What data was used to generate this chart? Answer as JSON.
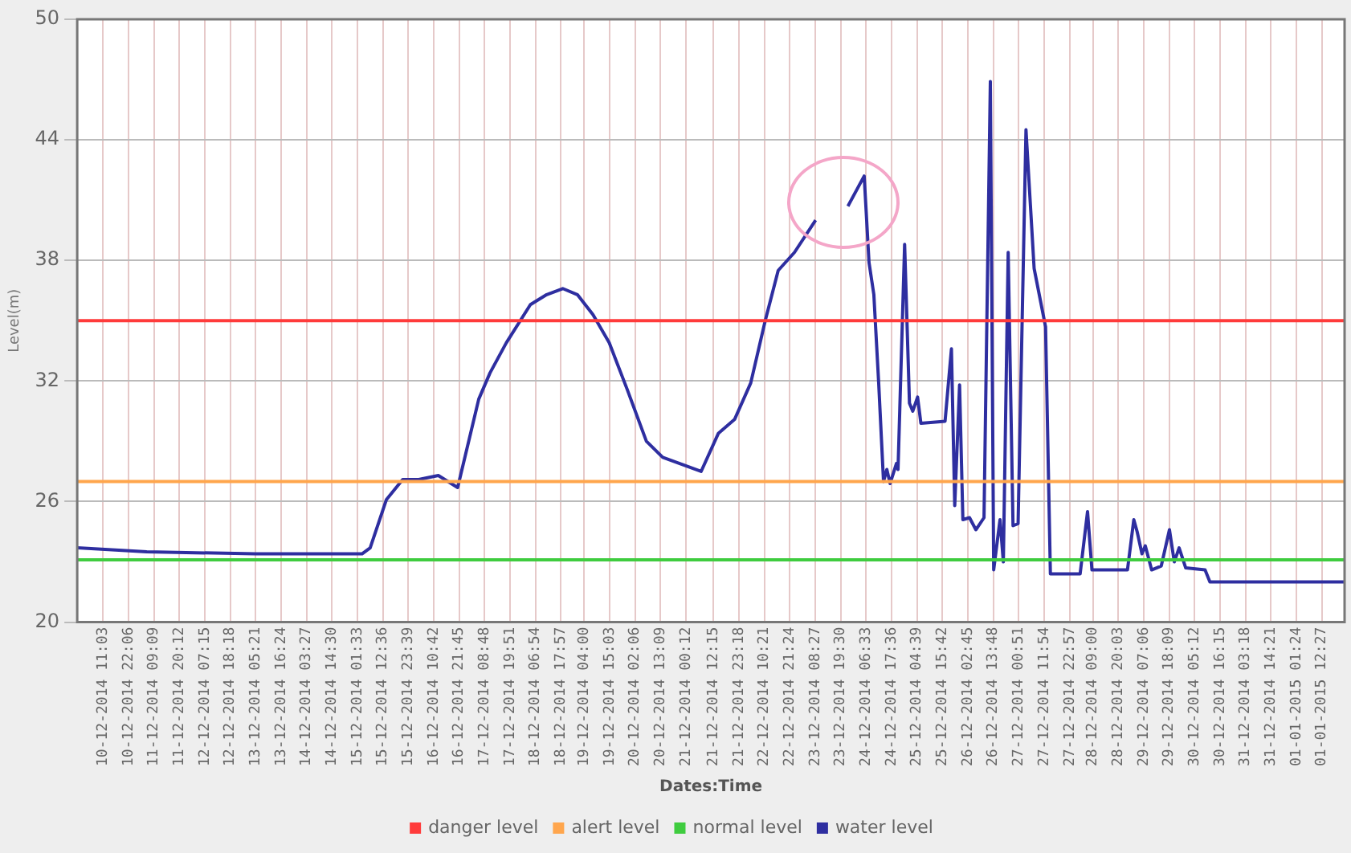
{
  "chart_data": {
    "type": "line",
    "xlabel": "Dates:Time",
    "ylabel": "Level(m)",
    "xlim": [
      "2014-12-09T23:50",
      "2015-01-01T22:20"
    ],
    "ylim": [
      20,
      50
    ],
    "yticks": [
      20,
      26,
      32,
      38,
      44,
      50
    ],
    "xticks": [
      {
        "value": "2014-12-10T11:03",
        "label": "10-12-2014 11:03"
      },
      {
        "value": "2014-12-10T22:06",
        "label": "10-12-2014 22:06"
      },
      {
        "value": "2014-12-11T09:09",
        "label": "11-12-2014 09:09"
      },
      {
        "value": "2014-12-11T20:12",
        "label": "11-12-2014 20:12"
      },
      {
        "value": "2014-12-12T07:15",
        "label": "12-12-2014 07:15"
      },
      {
        "value": "2014-12-12T18:18",
        "label": "12-12-2014 18:18"
      },
      {
        "value": "2014-12-13T05:21",
        "label": "13-12-2014 05:21"
      },
      {
        "value": "2014-12-13T16:24",
        "label": "13-12-2014 16:24"
      },
      {
        "value": "2014-12-14T03:27",
        "label": "14-12-2014 03:27"
      },
      {
        "value": "2014-12-14T14:30",
        "label": "14-12-2014 14:30"
      },
      {
        "value": "2014-12-15T01:33",
        "label": "15-12-2014 01:33"
      },
      {
        "value": "2014-12-15T12:36",
        "label": "15-12-2014 12:36"
      },
      {
        "value": "2014-12-15T23:39",
        "label": "15-12-2014 23:39"
      },
      {
        "value": "2014-12-16T10:42",
        "label": "16-12-2014 10:42"
      },
      {
        "value": "2014-12-16T21:45",
        "label": "16-12-2014 21:45"
      },
      {
        "value": "2014-12-17T08:48",
        "label": "17-12-2014 08:48"
      },
      {
        "value": "2014-12-17T19:51",
        "label": "17-12-2014 19:51"
      },
      {
        "value": "2014-12-18T06:54",
        "label": "18-12-2014 06:54"
      },
      {
        "value": "2014-12-18T17:57",
        "label": "18-12-2014 17:57"
      },
      {
        "value": "2014-12-19T04:00",
        "label": "19-12-2014 04:00"
      },
      {
        "value": "2014-12-19T15:03",
        "label": "19-12-2014 15:03"
      },
      {
        "value": "2014-12-20T02:06",
        "label": "20-12-2014 02:06"
      },
      {
        "value": "2014-12-20T13:09",
        "label": "20-12-2014 13:09"
      },
      {
        "value": "2014-12-21T00:12",
        "label": "21-12-2014 00:12"
      },
      {
        "value": "2014-12-21T12:15",
        "label": "21-12-2014 12:15"
      },
      {
        "value": "2014-12-21T23:18",
        "label": "21-12-2014 23:18"
      },
      {
        "value": "2014-12-22T10:21",
        "label": "22-12-2014 10:21"
      },
      {
        "value": "2014-12-22T21:24",
        "label": "22-12-2014 21:24"
      },
      {
        "value": "2014-12-23T08:27",
        "label": "23-12-2014 08:27"
      },
      {
        "value": "2014-12-23T19:30",
        "label": "23-12-2014 19:30"
      },
      {
        "value": "2014-12-24T06:33",
        "label": "24-12-2014 06:33"
      },
      {
        "value": "2014-12-24T17:36",
        "label": "24-12-2014 17:36"
      },
      {
        "value": "2014-12-25T04:39",
        "label": "25-12-2014 04:39"
      },
      {
        "value": "2014-12-25T15:42",
        "label": "25-12-2014 15:42"
      },
      {
        "value": "2014-12-26T02:45",
        "label": "26-12-2014 02:45"
      },
      {
        "value": "2014-12-26T13:48",
        "label": "26-12-2014 13:48"
      },
      {
        "value": "2014-12-27T00:51",
        "label": "27-12-2014 00:51"
      },
      {
        "value": "2014-12-27T11:54",
        "label": "27-12-2014 11:54"
      },
      {
        "value": "2014-12-27T22:57",
        "label": "27-12-2014 22:57"
      },
      {
        "value": "2014-12-28T09:00",
        "label": "28-12-2014 09:00"
      },
      {
        "value": "2014-12-28T20:03",
        "label": "28-12-2014 20:03"
      },
      {
        "value": "2014-12-29T07:06",
        "label": "29-12-2014 07:06"
      },
      {
        "value": "2014-12-29T18:09",
        "label": "29-12-2014 18:09"
      },
      {
        "value": "2014-12-30T05:12",
        "label": "30-12-2014 05:12"
      },
      {
        "value": "2014-12-30T16:15",
        "label": "30-12-2014 16:15"
      },
      {
        "value": "2014-12-31T03:18",
        "label": "31-12-2014 03:18"
      },
      {
        "value": "2014-12-31T14:21",
        "label": "31-12-2014 14:21"
      },
      {
        "value": "2015-01-01T01:24",
        "label": "01-01-2015 01:24"
      },
      {
        "value": "2015-01-01T12:27",
        "label": "01-01-2015 12:27"
      }
    ],
    "grid": true,
    "legend": "bottom",
    "marker": "none",
    "line_style": "solid",
    "series": [
      {
        "name": "danger level",
        "color": "#ff3b3b",
        "x": [
          "2014-12-09T23:50",
          "2015-01-01T22:20"
        ],
        "values": [
          35,
          35
        ]
      },
      {
        "name": "alert level",
        "color": "#ffa64d",
        "x": [
          "2014-12-09T23:50",
          "2015-01-01T22:20"
        ],
        "values": [
          27,
          27
        ]
      },
      {
        "name": "normal level",
        "color": "#3fcc3f",
        "x": [
          "2014-12-09T23:50",
          "2015-01-01T22:20"
        ],
        "values": [
          23.1,
          23.1
        ]
      },
      {
        "name": "water level",
        "color": "#2e2ea0",
        "x": [
          "2014-12-09T23:50",
          "2014-12-11T06:03",
          "2014-12-13T05:08",
          "2014-12-15T03:32",
          "2014-12-15T07:05",
          "2014-12-15T14:09",
          "2014-12-15T21:13",
          "2014-12-16T04:11",
          "2014-12-16T12:41",
          "2014-12-16T21:05",
          "2014-12-17T06:15",
          "2014-12-17T11:07",
          "2014-12-17T18:12",
          "2014-12-18T04:41",
          "2014-12-18T11:46",
          "2014-12-18T18:45",
          "2014-12-19T01:05",
          "2014-12-19T07:52",
          "2014-12-19T14:56",
          "2014-12-19T22:40",
          "2014-12-20T07:04",
          "2014-12-20T14:09",
          "2014-12-21T06:50",
          "2014-12-21T14:21",
          "2014-12-21T21:25",
          "2014-12-22T04:23",
          "2014-12-22T10:41",
          "2014-12-22T16:19",
          "2014-12-22T23:23",
          "2014-12-23T08:34",
          "2014-12-23T18:24",
          "2014-12-23T22:36",
          "2014-12-24T05:40",
          "2014-12-24T07:46",
          "2014-12-24T09:52",
          "2014-12-24T11:58",
          "2014-12-24T14:04",
          "2014-12-24T15:30",
          "2014-12-24T16:56",
          "2014-12-24T19:42",
          "2014-12-24T20:22",
          "2014-12-24T23:14",
          "2014-12-25T01:20",
          "2014-12-25T02:46",
          "2014-12-25T04:52",
          "2014-12-25T06:18",
          "2014-12-25T16:48",
          "2014-12-25T19:34",
          "2014-12-25T21:00",
          "2014-12-25T23:06",
          "2014-12-26T00:32",
          "2014-12-26T03:25",
          "2014-12-26T06:11",
          "2014-12-26T09:43",
          "2014-12-26T12:28",
          "2014-12-26T13:55",
          "2014-12-26T16:40",
          "2014-12-26T18:07",
          "2014-12-26T20:13",
          "2014-12-26T22:19",
          "2014-12-27T00:31",
          "2014-12-27T03:57",
          "2014-12-27T07:29",
          "2014-12-27T12:27",
          "2014-12-27T14:33",
          "2014-12-28T03:28",
          "2014-12-28T06:41",
          "2014-12-28T08:36",
          "2014-12-29T00:02",
          "2014-12-29T02:47",
          "2014-12-29T04:14",
          "2014-12-29T06:20",
          "2014-12-29T07:46",
          "2014-12-29T10:32",
          "2014-12-29T14:43",
          "2014-12-29T18:16",
          "2014-12-29T20:22",
          "2014-12-29T22:28",
          "2014-12-30T01:20",
          "2014-12-30T09:44",
          "2014-12-30T11:50",
          "2015-01-01T22:20"
        ],
        "values": [
          23.7,
          23.5,
          23.4,
          23.4,
          23.7,
          26.1,
          27.1,
          27.1,
          27.3,
          26.7,
          31.1,
          32.4,
          33.9,
          35.8,
          36.3,
          36.6,
          36.3,
          35.3,
          33.9,
          31.6,
          29.0,
          28.2,
          27.5,
          29.4,
          30.1,
          31.9,
          35.0,
          37.5,
          38.4,
          40.0,
          null,
          40.7,
          42.2,
          37.9,
          36.3,
          31.9,
          27.0,
          27.6,
          26.9,
          27.9,
          27.6,
          38.8,
          30.9,
          30.5,
          31.2,
          29.9,
          30.0,
          33.6,
          25.8,
          31.8,
          25.1,
          25.2,
          24.6,
          25.2,
          46.9,
          22.6,
          25.1,
          23.0,
          38.4,
          24.8,
          24.9,
          44.5,
          37.6,
          34.7,
          22.4,
          22.4,
          25.5,
          22.6,
          22.6,
          25.1,
          24.5,
          23.4,
          23.8,
          22.6,
          22.8,
          24.6,
          23.0,
          23.7,
          22.7,
          22.6,
          22.0,
          22.0
        ]
      }
    ]
  }
}
